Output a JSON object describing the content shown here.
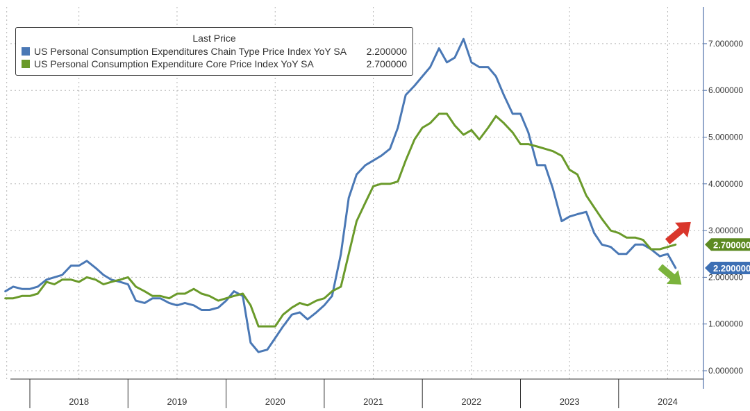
{
  "chart_data": {
    "type": "line",
    "legend_title": "Last Price",
    "legend_position": "top-left",
    "x_start": 2017.75,
    "x_end": 2024.9,
    "ylim": [
      -0.1,
      7.4
    ],
    "y_ticks": [
      {
        "value": 0,
        "label": "0.000000"
      },
      {
        "value": 1,
        "label": "1.000000"
      },
      {
        "value": 2,
        "label": "2.000000"
      },
      {
        "value": 3,
        "label": "3.000000"
      },
      {
        "value": 4,
        "label": "4.000000"
      },
      {
        "value": 5,
        "label": "5.000000"
      },
      {
        "value": 6,
        "label": "6.000000"
      },
      {
        "value": 7,
        "label": "7.000000"
      }
    ],
    "x_year_labels": [
      "2018",
      "2019",
      "2020",
      "2021",
      "2022",
      "2023",
      "2024"
    ],
    "grid": true,
    "series": [
      {
        "name": "US Personal Consumption Expenditures Chain Type Price Index YoY SA",
        "last_value": "2.200000",
        "color": "#4a78b5",
        "points": [
          [
            2017.75,
            1.7
          ],
          [
            2017.83,
            1.8
          ],
          [
            2017.92,
            1.75
          ],
          [
            2018.0,
            1.75
          ],
          [
            2018.08,
            1.8
          ],
          [
            2018.17,
            1.95
          ],
          [
            2018.25,
            2.0
          ],
          [
            2018.33,
            2.05
          ],
          [
            2018.42,
            2.25
          ],
          [
            2018.5,
            2.25
          ],
          [
            2018.58,
            2.35
          ],
          [
            2018.67,
            2.2
          ],
          [
            2018.75,
            2.05
          ],
          [
            2018.83,
            1.95
          ],
          [
            2018.92,
            1.9
          ],
          [
            2019.0,
            1.85
          ],
          [
            2019.08,
            1.5
          ],
          [
            2019.17,
            1.45
          ],
          [
            2019.25,
            1.55
          ],
          [
            2019.33,
            1.55
          ],
          [
            2019.42,
            1.45
          ],
          [
            2019.5,
            1.4
          ],
          [
            2019.58,
            1.45
          ],
          [
            2019.67,
            1.4
          ],
          [
            2019.75,
            1.3
          ],
          [
            2019.83,
            1.3
          ],
          [
            2019.92,
            1.35
          ],
          [
            2020.0,
            1.5
          ],
          [
            2020.08,
            1.7
          ],
          [
            2020.17,
            1.6
          ],
          [
            2020.25,
            0.6
          ],
          [
            2020.33,
            0.4
          ],
          [
            2020.42,
            0.45
          ],
          [
            2020.5,
            0.7
          ],
          [
            2020.58,
            0.95
          ],
          [
            2020.67,
            1.2
          ],
          [
            2020.75,
            1.25
          ],
          [
            2020.83,
            1.1
          ],
          [
            2020.92,
            1.25
          ],
          [
            2021.0,
            1.4
          ],
          [
            2021.08,
            1.6
          ],
          [
            2021.17,
            2.5
          ],
          [
            2021.25,
            3.7
          ],
          [
            2021.33,
            4.2
          ],
          [
            2021.42,
            4.4
          ],
          [
            2021.5,
            4.5
          ],
          [
            2021.58,
            4.6
          ],
          [
            2021.67,
            4.75
          ],
          [
            2021.75,
            5.2
          ],
          [
            2021.83,
            5.9
          ],
          [
            2021.92,
            6.1
          ],
          [
            2022.0,
            6.3
          ],
          [
            2022.08,
            6.5
          ],
          [
            2022.17,
            6.9
          ],
          [
            2022.25,
            6.6
          ],
          [
            2022.33,
            6.7
          ],
          [
            2022.42,
            7.1
          ],
          [
            2022.5,
            6.6
          ],
          [
            2022.58,
            6.5
          ],
          [
            2022.67,
            6.5
          ],
          [
            2022.75,
            6.3
          ],
          [
            2022.83,
            5.9
          ],
          [
            2022.92,
            5.5
          ],
          [
            2023.0,
            5.5
          ],
          [
            2023.08,
            5.1
          ],
          [
            2023.17,
            4.4
          ],
          [
            2023.25,
            4.4
          ],
          [
            2023.33,
            3.9
          ],
          [
            2023.42,
            3.2
          ],
          [
            2023.5,
            3.3
          ],
          [
            2023.58,
            3.35
          ],
          [
            2023.67,
            3.4
          ],
          [
            2023.75,
            2.95
          ],
          [
            2023.83,
            2.7
          ],
          [
            2023.92,
            2.65
          ],
          [
            2024.0,
            2.5
          ],
          [
            2024.08,
            2.5
          ],
          [
            2024.17,
            2.7
          ],
          [
            2024.25,
            2.7
          ],
          [
            2024.33,
            2.6
          ],
          [
            2024.42,
            2.45
          ],
          [
            2024.5,
            2.5
          ],
          [
            2024.58,
            2.2
          ]
        ]
      },
      {
        "name": "US Personal Consumption Expenditure Core Price Index YoY SA",
        "last_value": "2.700000",
        "color": "#6a9a2a",
        "points": [
          [
            2017.75,
            1.55
          ],
          [
            2017.83,
            1.55
          ],
          [
            2017.92,
            1.6
          ],
          [
            2018.0,
            1.6
          ],
          [
            2018.08,
            1.65
          ],
          [
            2018.17,
            1.9
          ],
          [
            2018.25,
            1.85
          ],
          [
            2018.33,
            1.95
          ],
          [
            2018.42,
            1.95
          ],
          [
            2018.5,
            1.9
          ],
          [
            2018.58,
            2.0
          ],
          [
            2018.67,
            1.95
          ],
          [
            2018.75,
            1.85
          ],
          [
            2018.83,
            1.9
          ],
          [
            2018.92,
            1.95
          ],
          [
            2019.0,
            2.0
          ],
          [
            2019.08,
            1.8
          ],
          [
            2019.17,
            1.7
          ],
          [
            2019.25,
            1.6
          ],
          [
            2019.33,
            1.6
          ],
          [
            2019.42,
            1.55
          ],
          [
            2019.5,
            1.65
          ],
          [
            2019.58,
            1.65
          ],
          [
            2019.67,
            1.75
          ],
          [
            2019.75,
            1.65
          ],
          [
            2019.83,
            1.6
          ],
          [
            2019.92,
            1.5
          ],
          [
            2020.0,
            1.55
          ],
          [
            2020.08,
            1.6
          ],
          [
            2020.17,
            1.65
          ],
          [
            2020.25,
            1.4
          ],
          [
            2020.33,
            0.95
          ],
          [
            2020.42,
            0.95
          ],
          [
            2020.5,
            0.95
          ],
          [
            2020.58,
            1.2
          ],
          [
            2020.67,
            1.35
          ],
          [
            2020.75,
            1.45
          ],
          [
            2020.83,
            1.4
          ],
          [
            2020.92,
            1.5
          ],
          [
            2021.0,
            1.55
          ],
          [
            2021.08,
            1.7
          ],
          [
            2021.17,
            1.8
          ],
          [
            2021.25,
            2.5
          ],
          [
            2021.33,
            3.2
          ],
          [
            2021.42,
            3.6
          ],
          [
            2021.5,
            3.95
          ],
          [
            2021.58,
            4.0
          ],
          [
            2021.67,
            4.0
          ],
          [
            2021.75,
            4.05
          ],
          [
            2021.83,
            4.5
          ],
          [
            2021.92,
            4.95
          ],
          [
            2022.0,
            5.2
          ],
          [
            2022.08,
            5.3
          ],
          [
            2022.17,
            5.5
          ],
          [
            2022.25,
            5.5
          ],
          [
            2022.33,
            5.25
          ],
          [
            2022.42,
            5.05
          ],
          [
            2022.5,
            5.15
          ],
          [
            2022.58,
            4.95
          ],
          [
            2022.67,
            5.2
          ],
          [
            2022.75,
            5.45
          ],
          [
            2022.83,
            5.3
          ],
          [
            2022.92,
            5.1
          ],
          [
            2023.0,
            4.85
          ],
          [
            2023.08,
            4.85
          ],
          [
            2023.17,
            4.8
          ],
          [
            2023.25,
            4.75
          ],
          [
            2023.33,
            4.7
          ],
          [
            2023.42,
            4.6
          ],
          [
            2023.5,
            4.3
          ],
          [
            2023.58,
            4.2
          ],
          [
            2023.67,
            3.75
          ],
          [
            2023.75,
            3.5
          ],
          [
            2023.83,
            3.25
          ],
          [
            2023.92,
            3.0
          ],
          [
            2024.0,
            2.95
          ],
          [
            2024.08,
            2.85
          ],
          [
            2024.17,
            2.85
          ],
          [
            2024.25,
            2.8
          ],
          [
            2024.33,
            2.6
          ],
          [
            2024.42,
            2.6
          ],
          [
            2024.5,
            2.65
          ],
          [
            2024.58,
            2.7
          ]
        ]
      }
    ],
    "annotations": [
      {
        "kind": "arrow-up-right",
        "color": "#d9362b",
        "near_series": 1
      },
      {
        "kind": "arrow-down-right",
        "color": "#7bb33c",
        "near_series": 0
      }
    ]
  }
}
